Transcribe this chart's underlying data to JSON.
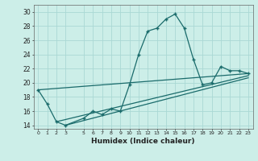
{
  "xlabel": "Humidex (Indice chaleur)",
  "bg_color": "#cceee8",
  "grid_color": "#aad8d4",
  "line_color": "#1a6b6b",
  "x_ticks": [
    0,
    1,
    2,
    3,
    5,
    6,
    7,
    8,
    9,
    10,
    11,
    12,
    13,
    14,
    15,
    16,
    17,
    18,
    19,
    20,
    21,
    22,
    23
  ],
  "ylim": [
    13.5,
    31
  ],
  "xlim": [
    -0.5,
    23.5
  ],
  "series": [
    [
      0,
      19.0
    ],
    [
      1,
      17.0
    ],
    [
      2,
      14.5
    ],
    [
      3,
      14.0
    ],
    [
      5,
      15.0
    ],
    [
      6,
      16.0
    ],
    [
      7,
      15.5
    ],
    [
      8,
      16.3
    ],
    [
      9,
      16.0
    ],
    [
      10,
      19.7
    ],
    [
      11,
      24.0
    ],
    [
      12,
      27.3
    ],
    [
      13,
      27.7
    ],
    [
      14,
      29.0
    ],
    [
      15,
      29.7
    ],
    [
      16,
      27.7
    ],
    [
      17,
      23.3
    ],
    [
      18,
      19.7
    ],
    [
      19,
      20.0
    ],
    [
      20,
      22.3
    ],
    [
      21,
      21.7
    ],
    [
      22,
      21.7
    ],
    [
      23,
      21.3
    ]
  ],
  "line2": [
    [
      0,
      19.0
    ],
    [
      23,
      21.3
    ]
  ],
  "line3": [
    [
      2,
      14.5
    ],
    [
      23,
      21.0
    ]
  ],
  "line4": [
    [
      3,
      14.0
    ],
    [
      23,
      20.7
    ]
  ],
  "yticks": [
    14,
    16,
    18,
    20,
    22,
    24,
    26,
    28,
    30
  ]
}
